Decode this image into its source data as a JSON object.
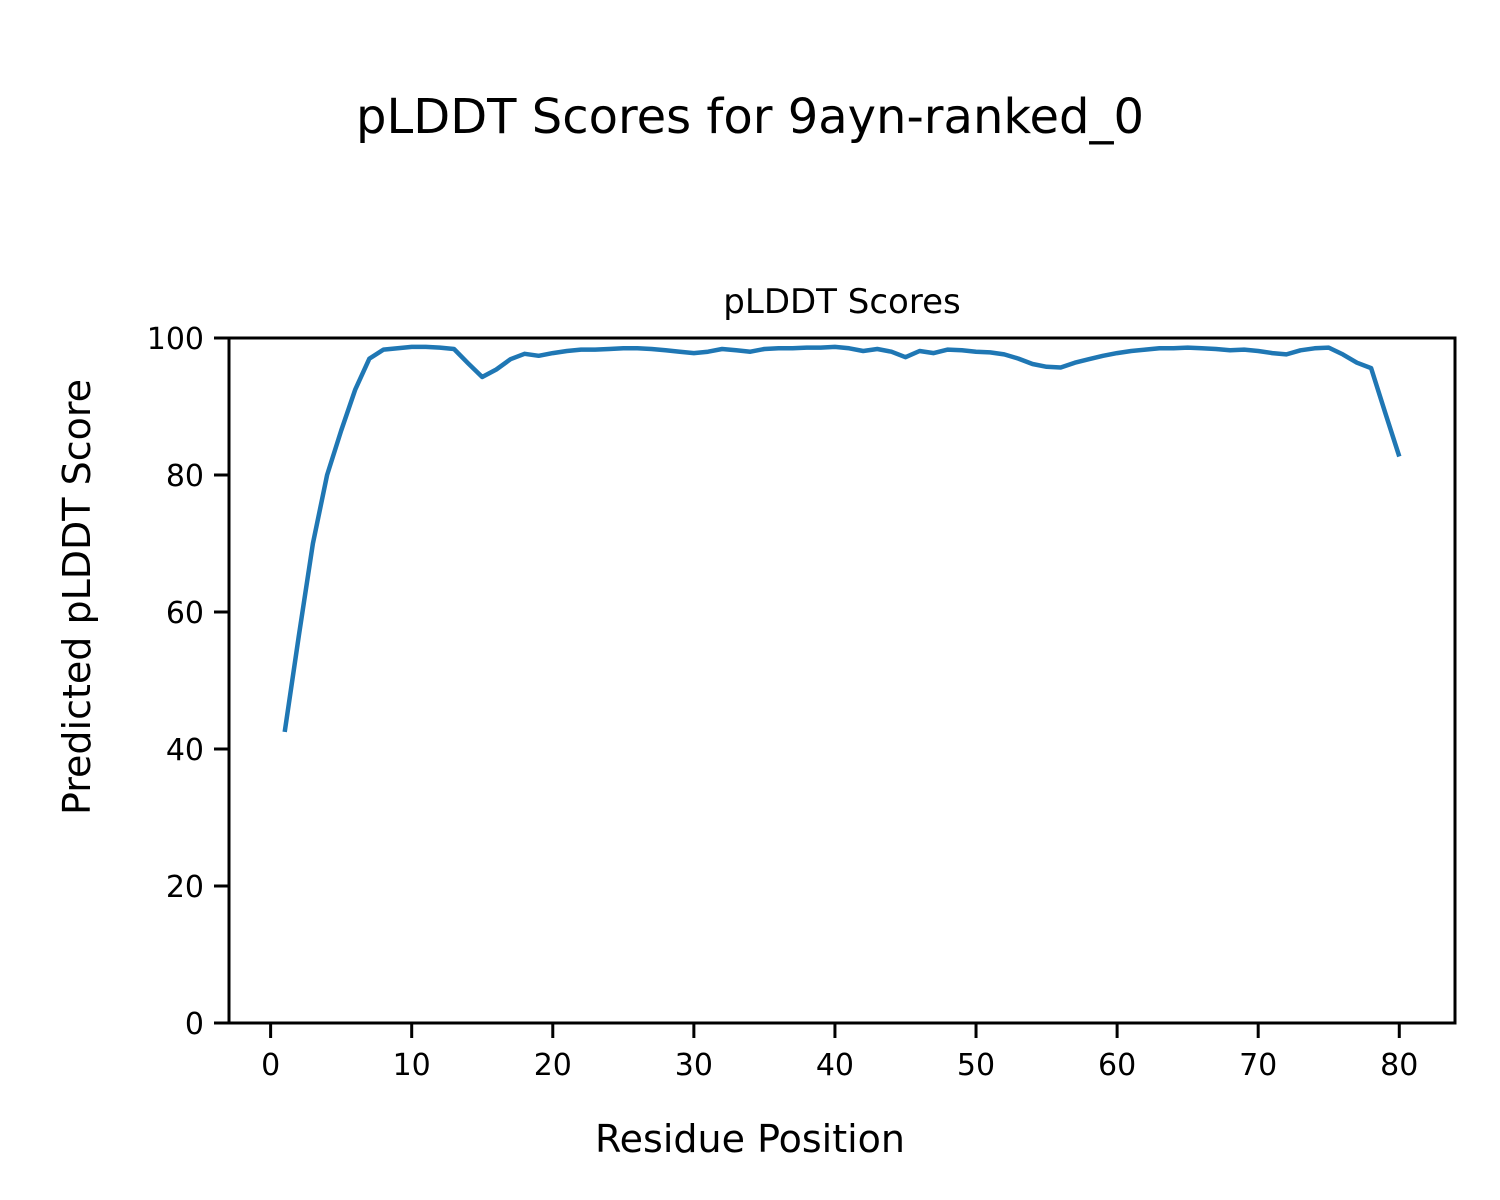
{
  "figure": {
    "suptitle": "pLDDT Scores for 9ayn-ranked_0",
    "background": "#ffffff",
    "text_color": "#000000"
  },
  "chart_data": {
    "type": "line",
    "title": "pLDDT Scores",
    "xlabel": "Residue Position",
    "ylabel": "Predicted pLDDT Score",
    "xlim": [
      -2.95,
      83.95
    ],
    "ylim": [
      0,
      100
    ],
    "xticks": [
      0,
      10,
      20,
      30,
      40,
      50,
      60,
      70,
      80
    ],
    "yticks": [
      0,
      20,
      40,
      60,
      80,
      100
    ],
    "grid": false,
    "legend_position": "none",
    "line_color": "#1f77b4",
    "line_width": 4.5,
    "series": [
      {
        "name": "pLDDT",
        "x": [
          1,
          2,
          3,
          4,
          5,
          6,
          7,
          8,
          9,
          10,
          11,
          12,
          13,
          14,
          15,
          16,
          17,
          18,
          19,
          20,
          21,
          22,
          23,
          24,
          25,
          26,
          27,
          28,
          29,
          30,
          31,
          32,
          33,
          34,
          35,
          36,
          37,
          38,
          39,
          40,
          41,
          42,
          43,
          44,
          45,
          46,
          47,
          48,
          49,
          50,
          51,
          52,
          53,
          54,
          55,
          56,
          57,
          58,
          59,
          60,
          61,
          62,
          63,
          64,
          65,
          66,
          67,
          68,
          69,
          70,
          71,
          72,
          73,
          74,
          75,
          76,
          77,
          78,
          79,
          80
        ],
        "y": [
          42.5,
          56.5,
          70.0,
          80.0,
          86.5,
          92.5,
          97.0,
          98.3,
          98.5,
          98.7,
          98.7,
          98.6,
          98.4,
          96.3,
          94.3,
          95.4,
          96.9,
          97.7,
          97.4,
          97.8,
          98.1,
          98.3,
          98.3,
          98.4,
          98.5,
          98.5,
          98.4,
          98.2,
          98.0,
          97.8,
          98.0,
          98.4,
          98.2,
          98.0,
          98.4,
          98.5,
          98.5,
          98.6,
          98.6,
          98.7,
          98.5,
          98.1,
          98.4,
          98.0,
          97.2,
          98.1,
          97.8,
          98.3,
          98.2,
          98.0,
          97.9,
          97.6,
          97.0,
          96.2,
          95.8,
          95.7,
          96.4,
          96.9,
          97.4,
          97.8,
          98.1,
          98.3,
          98.5,
          98.5,
          98.6,
          98.5,
          98.4,
          98.2,
          98.3,
          98.1,
          97.8,
          97.6,
          98.2,
          98.5,
          98.6,
          97.6,
          96.4,
          95.6,
          89.1,
          82.7
        ]
      }
    ]
  }
}
